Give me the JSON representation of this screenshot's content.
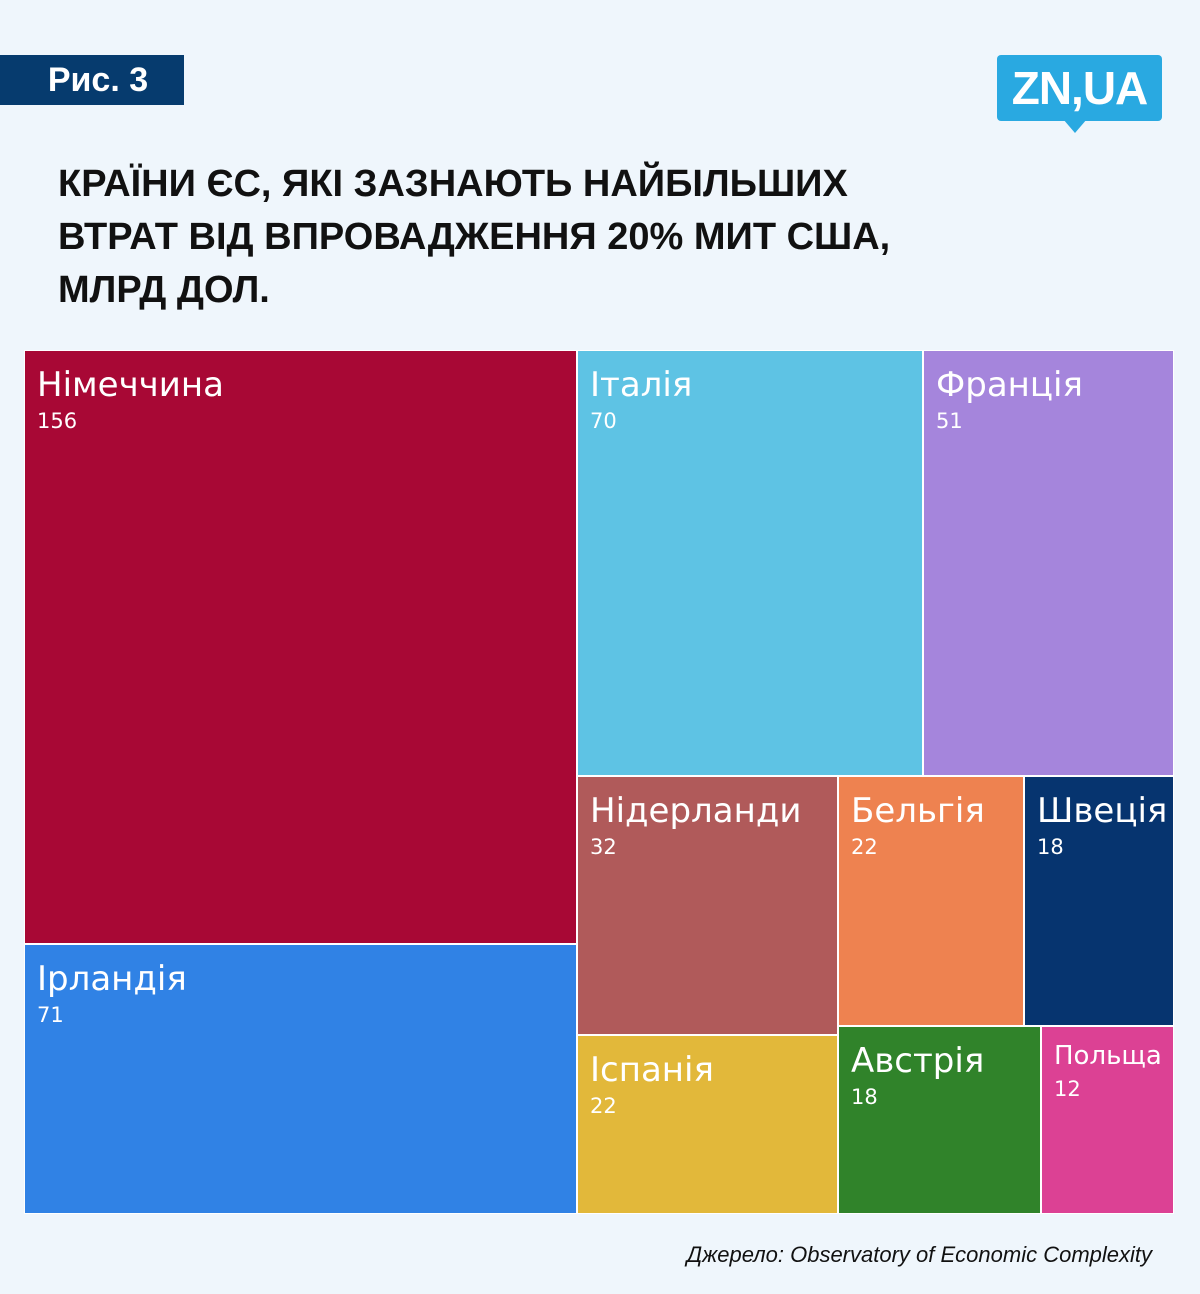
{
  "badge": "Рис. 3",
  "logo": "ZN,UA",
  "title_lines": [
    "КРАЇНИ ЄС, ЯКІ ЗАЗНАЮТЬ НАЙБІЛЬШИХ",
    "ВТРАТ ВІД ВПРОВАДЖЕННЯ 20% МИТ США,",
    "МЛРД ДОЛ."
  ],
  "source": "Джерело: Observatory of Economic Complexity",
  "chart_data": {
    "type": "treemap",
    "title": "КРАЇНИ ЄС, ЯКІ ЗАЗНАЮТЬ НАЙБІЛЬШИХ ВТРАТ ВІД ВПРОВАДЖЕННЯ 20% МИТ США, МЛРД ДОЛ.",
    "items": [
      {
        "name": "Німеччина",
        "value": 156,
        "color": "#a80835"
      },
      {
        "name": "Ірландія",
        "value": 71,
        "color": "#3082e5"
      },
      {
        "name": "Італія",
        "value": 70,
        "color": "#5ec3e4"
      },
      {
        "name": "Франція",
        "value": 51,
        "color": "#a585dc"
      },
      {
        "name": "Нідерланди",
        "value": 32,
        "color": "#b05a5a"
      },
      {
        "name": "Бельгія",
        "value": 22,
        "color": "#ee8250"
      },
      {
        "name": "Швеція",
        "value": 18,
        "color": "#06346f"
      },
      {
        "name": "Іспанія",
        "value": 22,
        "color": "#e2b83a"
      },
      {
        "name": "Австрія",
        "value": 18,
        "color": "#30832a"
      },
      {
        "name": "Польща",
        "value": 12,
        "color": "#dc4194"
      }
    ]
  }
}
